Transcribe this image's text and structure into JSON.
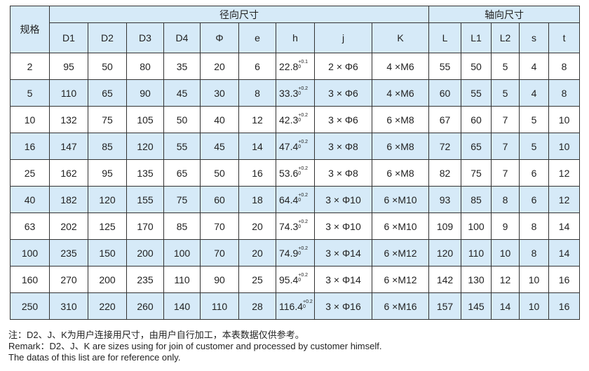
{
  "header": {
    "spec": "规格",
    "radial": "径向尺寸",
    "axial": "轴向尺寸",
    "columns": [
      "D1",
      "D2",
      "D3",
      "D4",
      "Φ",
      "e",
      "h",
      "j",
      "K",
      "L",
      "L1",
      "L2",
      "s",
      "t"
    ]
  },
  "rows": [
    {
      "spec": "2",
      "D1": "95",
      "D2": "50",
      "D3": "80",
      "D4": "35",
      "phi": "20",
      "e": "6",
      "h": "22.8",
      "h_upper": "+0.1",
      "h_lower": "0",
      "j": "2 × Φ6",
      "K": "4 ×M6",
      "L": "55",
      "L1": "50",
      "L2": "5",
      "s": "4",
      "t": "8"
    },
    {
      "spec": "5",
      "D1": "110",
      "D2": "65",
      "D3": "90",
      "D4": "45",
      "phi": "30",
      "e": "8",
      "h": "33.3",
      "h_upper": "+0.2",
      "h_lower": "0",
      "j": "3 × Φ6",
      "K": "4 ×M6",
      "L": "60",
      "L1": "55",
      "L2": "5",
      "s": "4",
      "t": "8"
    },
    {
      "spec": "10",
      "D1": "132",
      "D2": "75",
      "D3": "105",
      "D4": "50",
      "phi": "40",
      "e": "12",
      "h": "42.3",
      "h_upper": "+0.2",
      "h_lower": "0",
      "j": "3 × Φ6",
      "K": "6 ×M8",
      "L": "67",
      "L1": "60",
      "L2": "7",
      "s": "5",
      "t": "10"
    },
    {
      "spec": "16",
      "D1": "147",
      "D2": "85",
      "D3": "120",
      "D4": "55",
      "phi": "45",
      "e": "14",
      "h": "47.4",
      "h_upper": "+0.2",
      "h_lower": "0",
      "j": "3 × Φ8",
      "K": "6 ×M8",
      "L": "72",
      "L1": "65",
      "L2": "7",
      "s": "5",
      "t": "10"
    },
    {
      "spec": "25",
      "D1": "162",
      "D2": "95",
      "D3": "135",
      "D4": "65",
      "phi": "50",
      "e": "16",
      "h": "53.6",
      "h_upper": "+0.2",
      "h_lower": "0",
      "j": "3 × Φ8",
      "K": "6 ×M8",
      "L": "82",
      "L1": "75",
      "L2": "7",
      "s": "6",
      "t": "12"
    },
    {
      "spec": "40",
      "D1": "182",
      "D2": "120",
      "D3": "155",
      "D4": "75",
      "phi": "60",
      "e": "18",
      "h": "64.4",
      "h_upper": "+0.2",
      "h_lower": "0",
      "j": "3 × Φ10",
      "K": "6 ×M10",
      "L": "93",
      "L1": "85",
      "L2": "8",
      "s": "6",
      "t": "12"
    },
    {
      "spec": "63",
      "D1": "202",
      "D2": "125",
      "D3": "170",
      "D4": "85",
      "phi": "70",
      "e": "20",
      "h": "74.3",
      "h_upper": "+0.2",
      "h_lower": "0",
      "j": "3 × Φ10",
      "K": "6 ×M10",
      "L": "109",
      "L1": "100",
      "L2": "9",
      "s": "8",
      "t": "14"
    },
    {
      "spec": "100",
      "D1": "235",
      "D2": "150",
      "D3": "200",
      "D4": "100",
      "phi": "70",
      "e": "20",
      "h": "74.9",
      "h_upper": "+0.2",
      "h_lower": "0",
      "j": "3 × Φ14",
      "K": "6 ×M12",
      "L": "120",
      "L1": "110",
      "L2": "10",
      "s": "8",
      "t": "14"
    },
    {
      "spec": "160",
      "D1": "270",
      "D2": "200",
      "D3": "235",
      "D4": "110",
      "phi": "90",
      "e": "25",
      "h": "95.4",
      "h_upper": "+0.2",
      "h_lower": "0",
      "j": "3 × Φ14",
      "K": "6 ×M12",
      "L": "142",
      "L1": "130",
      "L2": "12",
      "s": "10",
      "t": "16"
    },
    {
      "spec": "250",
      "D1": "310",
      "D2": "220",
      "D3": "260",
      "D4": "140",
      "phi": "110",
      "e": "28",
      "h": "116.4",
      "h_upper": "+0.2",
      "h_lower": "0",
      "j": "3 × Φ16",
      "K": "6 ×M16",
      "L": "157",
      "L1": "145",
      "L2": "14",
      "s": "10",
      "t": "16"
    }
  ],
  "notes": [
    "注：D2、J、K为用户连接用尺寸，由用户自行加工，本表数据仅供参考。",
    "Remark：D2、J、K  are sizes using for join of customer and processed by customer himself.",
    "The datas of this list are for reference only."
  ]
}
